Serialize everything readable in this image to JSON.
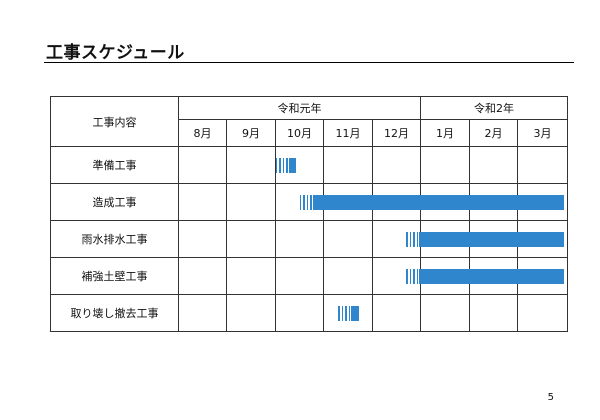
{
  "page_title": "工事スケジュール",
  "page_number": "5",
  "accent_color": "#2f86cc",
  "table": {
    "header_label": "工事内容",
    "years": [
      {
        "label": "令和元年",
        "span": 5
      },
      {
        "label": "令和2年",
        "span": 3
      }
    ],
    "months": [
      "8月",
      "9月",
      "10月",
      "11月",
      "12月",
      "1月",
      "2月",
      "3月"
    ],
    "tasks": [
      {
        "name": "準備工事",
        "start_month": 2.0,
        "end_month": 2.5
      },
      {
        "name": "造成工事",
        "start_month": 2.5,
        "end_month": 8.0
      },
      {
        "name": "雨水排水工事",
        "start_month": 4.7,
        "end_month": 8.0
      },
      {
        "name": "補強土壁工事",
        "start_month": 4.7,
        "end_month": 8.0
      },
      {
        "name": "取り壊し撤去工事",
        "start_month": 3.3,
        "end_month": 3.8
      }
    ]
  }
}
